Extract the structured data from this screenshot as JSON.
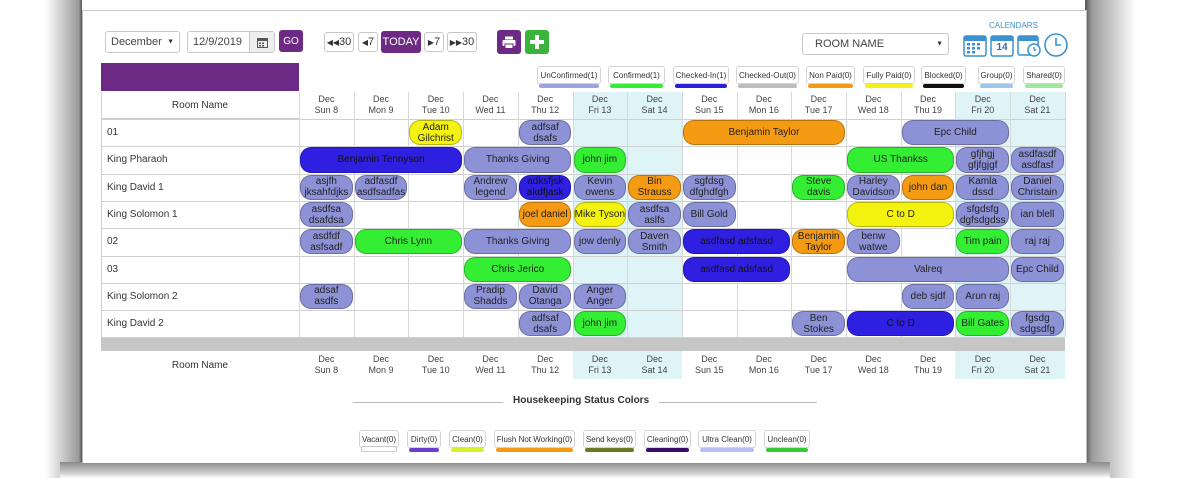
{
  "toolbar": {
    "month": "December",
    "date": "12/9/2019",
    "go_label": "GO",
    "back30": "30",
    "back7": "7",
    "today": "TODAY",
    "fwd7": "7",
    "fwd30": "30",
    "room_name_select": "ROOM NAME",
    "calendars_label": "CALENDARS",
    "cal_day_num": "14"
  },
  "status_legend": [
    {
      "label": "UnConfirmed(1)",
      "color": "#9da3dc"
    },
    {
      "label": "Confirmed(1)",
      "color": "#33ee33"
    },
    {
      "label": "Checked-In(1)",
      "color": "#2b1fd9"
    },
    {
      "label": "Checked-Out(0)",
      "color": "#bdbdbd"
    },
    {
      "label": "Non Paid(0)",
      "color": "#f49a13"
    },
    {
      "label": "Fully Paid(0)",
      "color": "#f3ef17"
    },
    {
      "label": "Blocked(0)",
      "color": "#111111"
    },
    {
      "label": "Group(0)",
      "color": "#9fc5e8"
    },
    {
      "label": "Shared(0)",
      "color": "#9fe59f"
    }
  ],
  "grid": {
    "room_header": "Room Name",
    "days": [
      {
        "m": "Dec",
        "d": "Sun 8"
      },
      {
        "m": "Dec",
        "d": "Mon 9"
      },
      {
        "m": "Dec",
        "d": "Tue 10"
      },
      {
        "m": "Dec",
        "d": "Wed 11"
      },
      {
        "m": "Dec",
        "d": "Thu 12"
      },
      {
        "m": "Dec",
        "d": "Fri 13"
      },
      {
        "m": "Dec",
        "d": "Sat 14"
      },
      {
        "m": "Dec",
        "d": "Sun 15"
      },
      {
        "m": "Dec",
        "d": "Mon 16"
      },
      {
        "m": "Dec",
        "d": "Tue 17"
      },
      {
        "m": "Dec",
        "d": "Wed 18"
      },
      {
        "m": "Dec",
        "d": "Thu 19"
      },
      {
        "m": "Dec",
        "d": "Fri 20"
      },
      {
        "m": "Dec",
        "d": "Sat 21"
      }
    ],
    "rooms": [
      "01",
      "King Pharaoh",
      "King David 1",
      "King Solomon 1",
      "02",
      "03",
      "King Solomon 2",
      "King David 2"
    ]
  },
  "bookings": [
    {
      "row": 0,
      "start": 2,
      "span": 1,
      "text": "Adam\nGilchrist",
      "status": "fully_paid"
    },
    {
      "row": 0,
      "start": 4,
      "span": 1,
      "text": "adfsaf\ndsafs",
      "status": "unconfirmed"
    },
    {
      "row": 0,
      "start": 7,
      "span": 3,
      "text": "Benjamin Taylor",
      "status": "non_paid"
    },
    {
      "row": 0,
      "start": 11,
      "span": 2,
      "text": "Epc Child",
      "status": "unconfirmed"
    },
    {
      "row": 1,
      "start": 0,
      "span": 3,
      "text": "Benjamin Tennyson",
      "status": "checked_in"
    },
    {
      "row": 1,
      "start": 3,
      "span": 2,
      "text": "Thanks Giving",
      "status": "unconfirmed"
    },
    {
      "row": 1,
      "start": 5,
      "span": 1,
      "text": "john jim",
      "status": "confirmed"
    },
    {
      "row": 1,
      "start": 10,
      "span": 2,
      "text": "US Thankss",
      "status": "confirmed"
    },
    {
      "row": 1,
      "start": 12,
      "span": 1,
      "text": "gfjhgj\ngfjfgjgf",
      "status": "unconfirmed"
    },
    {
      "row": 1,
      "start": 13,
      "span": 1,
      "text": "asdfasdf\nasdfasf",
      "status": "unconfirmed"
    },
    {
      "row": 2,
      "start": 0,
      "span": 1,
      "text": "asjfh\njksahfdjks",
      "status": "unconfirmed"
    },
    {
      "row": 2,
      "start": 1,
      "span": 1,
      "text": "adfasdf\nasdfsadfas",
      "status": "unconfirmed"
    },
    {
      "row": 2,
      "start": 3,
      "span": 1,
      "text": "Andrew\nlegend",
      "status": "unconfirmed"
    },
    {
      "row": 2,
      "start": 4,
      "span": 1,
      "text": "adksfjsk\nakdfjask",
      "status": "checked_in"
    },
    {
      "row": 2,
      "start": 5,
      "span": 1,
      "text": "Kevin\nowens",
      "status": "unconfirmed"
    },
    {
      "row": 2,
      "start": 6,
      "span": 1,
      "text": "Bin Strauss",
      "status": "non_paid"
    },
    {
      "row": 2,
      "start": 7,
      "span": 1,
      "text": "sgfdsg\ndfghdfgh",
      "status": "unconfirmed"
    },
    {
      "row": 2,
      "start": 9,
      "span": 1,
      "text": "Steve davis",
      "status": "confirmed"
    },
    {
      "row": 2,
      "start": 10,
      "span": 1,
      "text": "Harley\nDavidson",
      "status": "unconfirmed"
    },
    {
      "row": 2,
      "start": 11,
      "span": 1,
      "text": "john dan",
      "status": "non_paid"
    },
    {
      "row": 2,
      "start": 12,
      "span": 1,
      "text": "Kamla dssd",
      "status": "unconfirmed"
    },
    {
      "row": 2,
      "start": 13,
      "span": 1,
      "text": "Daniel\nChristain",
      "status": "unconfirmed"
    },
    {
      "row": 3,
      "start": 0,
      "span": 1,
      "text": "asdfsa\ndsafdsa",
      "status": "unconfirmed"
    },
    {
      "row": 3,
      "start": 4,
      "span": 1,
      "text": "joel daniel",
      "status": "non_paid"
    },
    {
      "row": 3,
      "start": 5,
      "span": 1,
      "text": "Mike Tyson",
      "status": "fully_paid"
    },
    {
      "row": 3,
      "start": 6,
      "span": 1,
      "text": "asdfsa aslfs",
      "status": "unconfirmed"
    },
    {
      "row": 3,
      "start": 7,
      "span": 1,
      "text": "Bill Gold",
      "status": "unconfirmed"
    },
    {
      "row": 3,
      "start": 10,
      "span": 2,
      "text": "C to D",
      "status": "fully_paid"
    },
    {
      "row": 3,
      "start": 12,
      "span": 1,
      "text": "sfgdsfg\ndgfsdgdss",
      "status": "unconfirmed"
    },
    {
      "row": 3,
      "start": 13,
      "span": 1,
      "text": "ian blell",
      "status": "unconfirmed"
    },
    {
      "row": 4,
      "start": 0,
      "span": 1,
      "text": "asdfdf\nasfsadf",
      "status": "unconfirmed"
    },
    {
      "row": 4,
      "start": 1,
      "span": 2,
      "text": "Chris Lynn",
      "status": "confirmed"
    },
    {
      "row": 4,
      "start": 3,
      "span": 2,
      "text": "Thanks Giving",
      "status": "unconfirmed"
    },
    {
      "row": 4,
      "start": 5,
      "span": 1,
      "text": "jow denly",
      "status": "unconfirmed"
    },
    {
      "row": 4,
      "start": 6,
      "span": 1,
      "text": "Daven\nSmith",
      "status": "unconfirmed"
    },
    {
      "row": 4,
      "start": 7,
      "span": 2,
      "text": "asdfasd adsfasd",
      "status": "checked_in"
    },
    {
      "row": 4,
      "start": 9,
      "span": 1,
      "text": "Benjamin\nTaylor",
      "status": "non_paid"
    },
    {
      "row": 4,
      "start": 10,
      "span": 1,
      "text": "benw\nwatwe",
      "status": "unconfirmed"
    },
    {
      "row": 4,
      "start": 12,
      "span": 1,
      "text": "Tim pain",
      "status": "confirmed"
    },
    {
      "row": 4,
      "start": 13,
      "span": 1,
      "text": "raj raj",
      "status": "unconfirmed"
    },
    {
      "row": 5,
      "start": 3,
      "span": 2,
      "text": "Chris Jerico",
      "status": "confirmed"
    },
    {
      "row": 5,
      "start": 7,
      "span": 2,
      "text": "asdfasd adsfasd",
      "status": "checked_in"
    },
    {
      "row": 5,
      "start": 10,
      "span": 3,
      "text": "Valreq",
      "status": "unconfirmed"
    },
    {
      "row": 5,
      "start": 13,
      "span": 1,
      "text": "Epc Child",
      "status": "unconfirmed"
    },
    {
      "row": 6,
      "start": 0,
      "span": 1,
      "text": "adsaf asdfs",
      "status": "unconfirmed"
    },
    {
      "row": 6,
      "start": 3,
      "span": 1,
      "text": "Pradip\nShadds",
      "status": "unconfirmed"
    },
    {
      "row": 6,
      "start": 4,
      "span": 1,
      "text": "David\nOtanga",
      "status": "unconfirmed"
    },
    {
      "row": 6,
      "start": 5,
      "span": 1,
      "text": "Anger\nAnger",
      "status": "unconfirmed"
    },
    {
      "row": 6,
      "start": 11,
      "span": 1,
      "text": "deb sjdf",
      "status": "unconfirmed"
    },
    {
      "row": 6,
      "start": 12,
      "span": 1,
      "text": "Arun raj",
      "status": "unconfirmed"
    },
    {
      "row": 7,
      "start": 4,
      "span": 1,
      "text": "adfsaf\ndsafs",
      "status": "unconfirmed"
    },
    {
      "row": 7,
      "start": 5,
      "span": 1,
      "text": "john jim",
      "status": "confirmed"
    },
    {
      "row": 7,
      "start": 9,
      "span": 1,
      "text": "Ben Stokes",
      "status": "unconfirmed"
    },
    {
      "row": 7,
      "start": 10,
      "span": 2,
      "text": "C to D",
      "status": "checked_in"
    },
    {
      "row": 7,
      "start": 12,
      "span": 1,
      "text": "Bill Gates",
      "status": "confirmed"
    },
    {
      "row": 7,
      "start": 13,
      "span": 1,
      "text": "fgsdg\nsdgsdfg",
      "status": "unconfirmed"
    }
  ],
  "status_colors": {
    "unconfirmed": "#8d92d6",
    "confirmed": "#33ee33",
    "checked_in": "#2f1fe0",
    "non_paid": "#f49a13",
    "fully_paid": "#f4f20f"
  },
  "housekeeping": {
    "title": "Housekeeping Status Colors",
    "items": [
      {
        "label": "Vacant(0)",
        "color": "#ffffff"
      },
      {
        "label": "Dirty(0)",
        "color": "#6a3fcf"
      },
      {
        "label": "Clean(0)",
        "color": "#d8f22a"
      },
      {
        "label": "Flush Not Working(0)",
        "color": "#f49a13"
      },
      {
        "label": "Send keys(0)",
        "color": "#6b7a22"
      },
      {
        "label": "Cleaning(0)",
        "color": "#3a0a6a"
      },
      {
        "label": "Ultra Clean(0)",
        "color": "#b9bff0"
      },
      {
        "label": "Unclean(0)",
        "color": "#33cc33"
      }
    ]
  }
}
